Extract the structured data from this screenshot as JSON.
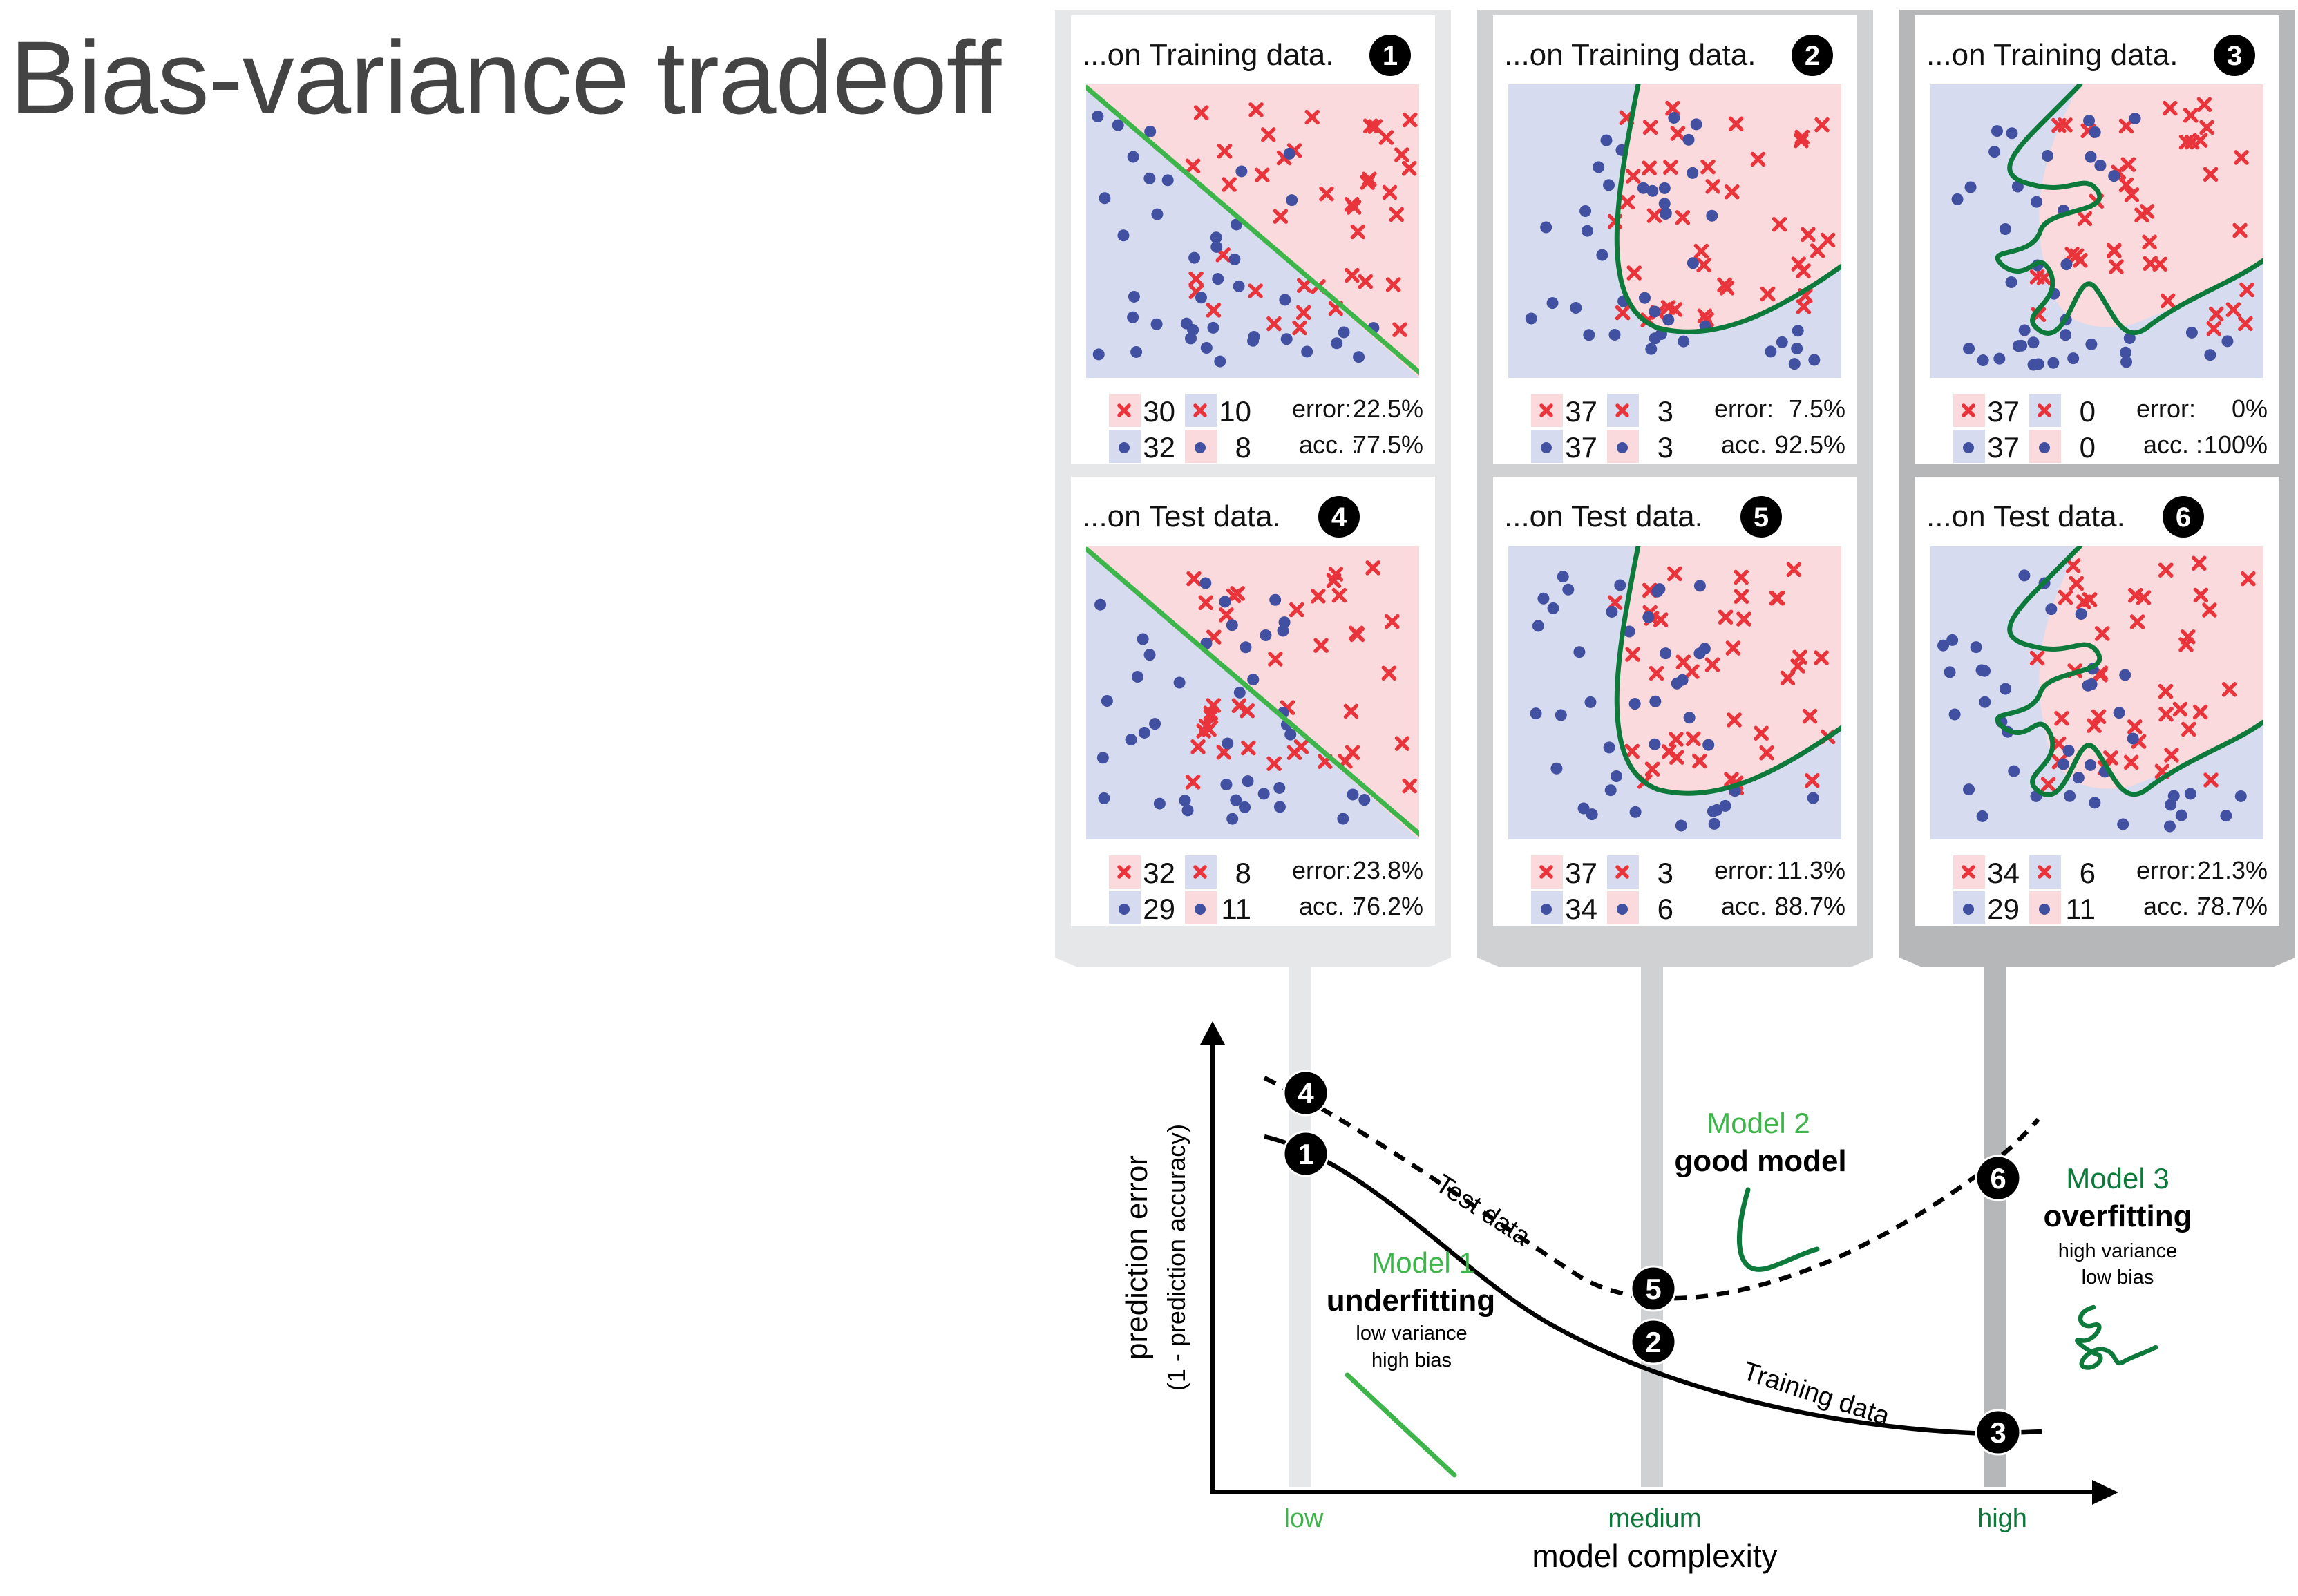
{
  "title": "Bias-variance tradeoff",
  "colors": {
    "red_region": "#fadadd",
    "blue_region": "#d7dbef",
    "red_marker": "#e8343a",
    "blue_marker": "#4150a0",
    "model1_green": "#3db54a",
    "model23_green": "#0d7a3c",
    "frame_light": "#e6e7e9",
    "frame_mid": "#d0d1d3",
    "frame_dark": "#b6b7b9"
  },
  "columns": [
    {
      "line": "linear",
      "shade": "frame_light"
    },
    {
      "line": "smooth",
      "shade": "frame_mid"
    },
    {
      "line": "wiggly",
      "shade": "frame_dark"
    }
  ],
  "panels": [
    {
      "id": "p1",
      "heading": "...on Training data.",
      "badge": "1",
      "cm": {
        "tp": "30",
        "fp": "10",
        "tn": "32",
        "fn": "8"
      },
      "error_label": "error:",
      "error_value": "22.5%",
      "acc_label": "acc. :",
      "acc_value": "77.5%"
    },
    {
      "id": "p2",
      "heading": "...on Training data.",
      "badge": "2",
      "cm": {
        "tp": "37",
        "fp": "3",
        "tn": "37",
        "fn": "3"
      },
      "error_label": "error:",
      "error_value": "7.5%",
      "acc_label": "acc. :",
      "acc_value": "92.5%"
    },
    {
      "id": "p3",
      "heading": "...on Training data.",
      "badge": "3",
      "cm": {
        "tp": "37",
        "fp": "0",
        "tn": "37",
        "fn": "0"
      },
      "error_label": "error:",
      "error_value": "0%",
      "acc_label": "acc. :",
      "acc_value": "100%"
    },
    {
      "id": "p4",
      "heading": "...on Test data.",
      "badge": "4",
      "cm": {
        "tp": "32",
        "fp": "8",
        "tn": "29",
        "fn": "11"
      },
      "error_label": "error:",
      "error_value": "23.8%",
      "acc_label": "acc. :",
      "acc_value": "76.2%"
    },
    {
      "id": "p5",
      "heading": "...on Test data.",
      "badge": "5",
      "cm": {
        "tp": "37",
        "fp": "3",
        "tn": "34",
        "fn": "6"
      },
      "error_label": "error:",
      "error_value": "11.3%",
      "acc_label": "acc. :",
      "acc_value": "88.7%"
    },
    {
      "id": "p6",
      "heading": "...on Test data.",
      "badge": "6",
      "cm": {
        "tp": "34",
        "fp": "6",
        "tn": "29",
        "fn": "11"
      },
      "error_label": "error:",
      "error_value": "21.3%",
      "acc_label": "acc. :",
      "acc_value": "78.7%"
    }
  ],
  "graph": {
    "y_label": "prediction error",
    "y_sublabel": "(1 - prediction accuracy)",
    "x_label": "model complexity",
    "x_ticks": [
      "low",
      "medium",
      "high"
    ],
    "test_curve_label": "Test data",
    "train_curve_label": "Training data",
    "model1": {
      "name": "Model 1",
      "verdict": "underfitting",
      "line1": "low variance",
      "line2": "high bias"
    },
    "model2": {
      "name": "Model 2",
      "verdict": "good model"
    },
    "model3": {
      "name": "Model 3",
      "verdict": "overfitting",
      "line1": "high variance",
      "line2": "low bias"
    },
    "badges": [
      "4",
      "1",
      "5",
      "2",
      "6",
      "3"
    ]
  }
}
